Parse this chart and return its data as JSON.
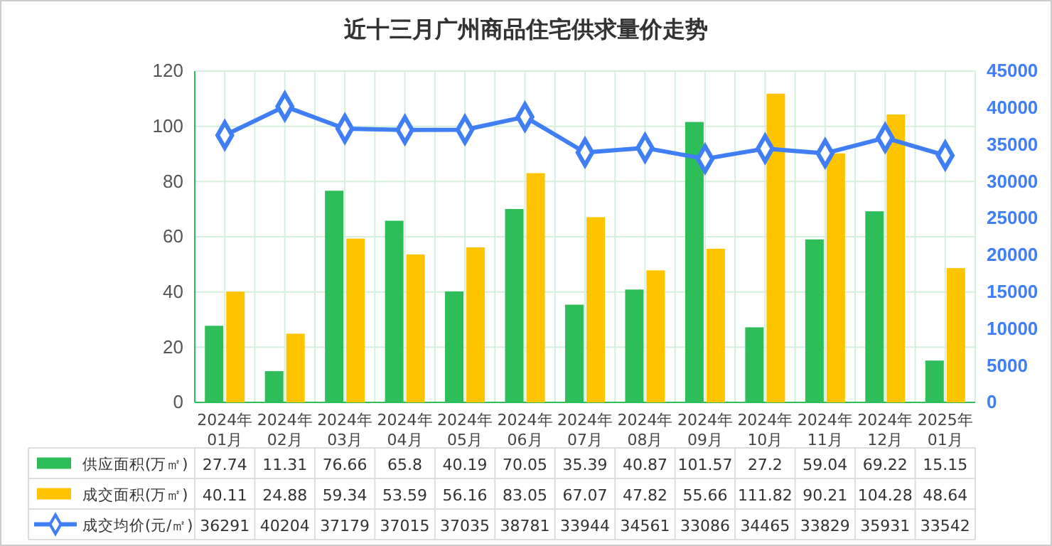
{
  "chart_data": {
    "type": "bar",
    "title": "近十三月广州商品住宅供求量价走势",
    "categories": [
      "2024年\n01月",
      "2024年\n02月",
      "2024年\n03月",
      "2024年\n04月",
      "2024年\n05月",
      "2024年\n06月",
      "2024年\n07月",
      "2024年\n08月",
      "2024年\n09月",
      "2024年\n10月",
      "2024年\n11月",
      "2024年\n12月",
      "2025年\n01月"
    ],
    "series": [
      {
        "name": "供应面积(万㎡)",
        "color": "#2dbe5a",
        "values": [
          27.74,
          11.31,
          76.66,
          65.8,
          40.19,
          70.05,
          35.39,
          40.87,
          101.57,
          27.2,
          59.04,
          69.22,
          15.15
        ]
      },
      {
        "name": "成交面积(万㎡)",
        "color": "#ffc400",
        "values": [
          40.11,
          24.88,
          59.34,
          53.59,
          56.16,
          83.05,
          67.07,
          47.82,
          55.66,
          111.82,
          90.21,
          104.28,
          48.64
        ]
      },
      {
        "name": "成交均价(元/㎡)",
        "type": "line",
        "axis": "y2",
        "color": "#3f7ef5",
        "marker": "diamond",
        "values": [
          36291,
          40204,
          37179,
          37015,
          37035,
          38781,
          33944,
          34561,
          33086,
          34465,
          33829,
          35931,
          33542
        ]
      }
    ],
    "ylim": [
      0,
      120
    ],
    "yticks": [
      0,
      20,
      40,
      60,
      80,
      100,
      120
    ],
    "y2lim": [
      0,
      45000
    ],
    "y2ticks": [
      0,
      5000,
      10000,
      15000,
      20000,
      25000,
      30000,
      35000,
      40000,
      45000
    ],
    "grid": true,
    "legend": "bottom",
    "data_labels": true
  }
}
